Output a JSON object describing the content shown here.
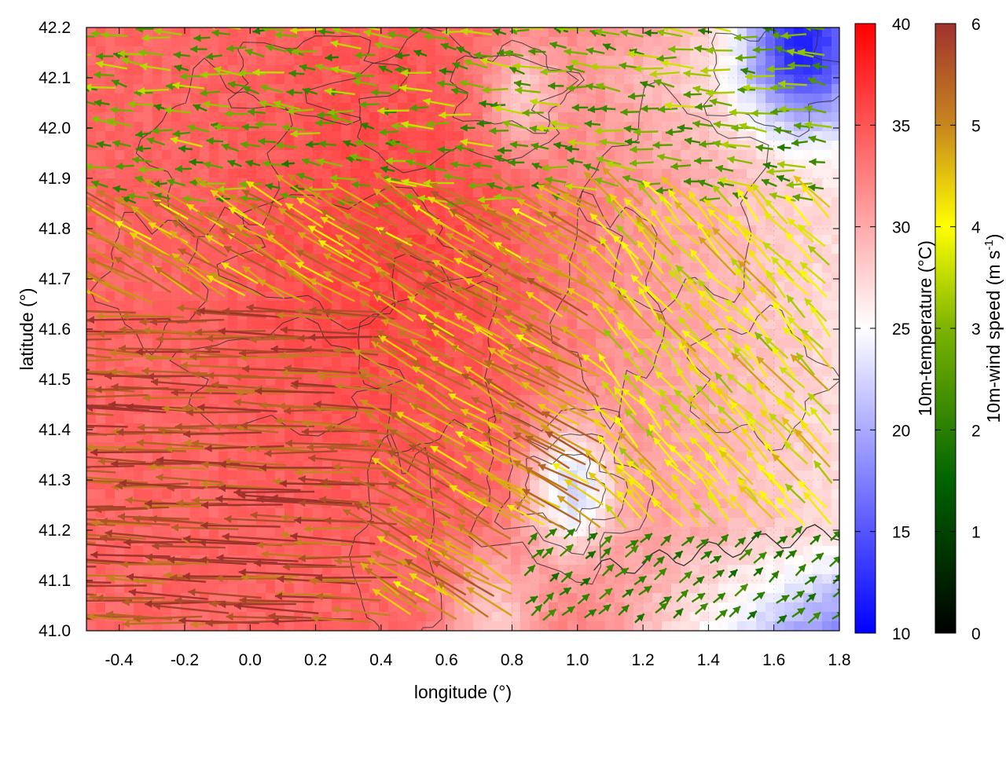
{
  "chart_data": {
    "type": "heatmap",
    "title": "",
    "xlabel": "longitude (°)",
    "ylabel": "latitude (°)",
    "xlim": [
      -0.5,
      1.8
    ],
    "ylim": [
      41.0,
      42.2
    ],
    "x_ticks": [
      "-0.4",
      "-0.2",
      "0.0",
      "0.2",
      "0.4",
      "0.6",
      "0.8",
      "1.0",
      "1.2",
      "1.4",
      "1.6",
      "1.8"
    ],
    "y_ticks": [
      "41.0",
      "41.1",
      "41.2",
      "41.3",
      "41.4",
      "41.5",
      "41.6",
      "41.7",
      "41.8",
      "41.9",
      "42.0",
      "42.1",
      "42.2"
    ],
    "grid": true,
    "layers": [
      {
        "name": "10m-temperature",
        "kind": "color-field",
        "units": "°C"
      },
      {
        "name": "terrain contours",
        "kind": "contour-lines",
        "color": "#303030"
      },
      {
        "name": "10m-wind",
        "kind": "vector-arrows",
        "units": "m s-1"
      }
    ],
    "temperature_colorbar": {
      "label": "10m-temperature (°C)",
      "range": [
        10,
        40
      ],
      "ticks": [
        "10",
        "15",
        "20",
        "25",
        "30",
        "35",
        "40"
      ],
      "colors": [
        "#0000ff",
        "#ffffff",
        "#ff0000"
      ]
    },
    "wind_colorbar": {
      "label_main": "10m-wind speed (m s",
      "label_sup": "-1",
      "label_end": ")",
      "range": [
        0,
        6
      ],
      "ticks": [
        "0",
        "1",
        "2",
        "3",
        "4",
        "5",
        "6"
      ],
      "colors": [
        "#000000",
        "#006400",
        "#7cb400",
        "#ffff00",
        "#c8861e",
        "#a0322d"
      ]
    },
    "temperature_regions": [
      {
        "area": "west and centre (lon -0.5 to 0.7)",
        "approx_temp_c": 34
      },
      {
        "area": "north-centre band lat 41.6-41.9",
        "approx_temp_c": 35
      },
      {
        "area": "east lowland lon 1.2-1.8, lat 41.4-41.7",
        "approx_temp_c": 27
      },
      {
        "area": "northeast corner lon 1.5-1.8, lat 42.1-42.2",
        "approx_temp_c": 17
      },
      {
        "area": "depression around lon 1.0, lat 41.3",
        "approx_temp_c": 22
      },
      {
        "area": "coastal strip southeast lon 1.2-1.8, lat 41.0-41.15",
        "approx_temp_c": 21
      }
    ],
    "wind_regions": [
      {
        "area": "southwest lon -0.5 to 0.4, lat 41.0-41.6",
        "direction": "from east (westward flow)",
        "speed_ms": 5.8
      },
      {
        "area": "centre lon 0.4-1.0, lat 41.3-41.8",
        "direction": "from southeast",
        "speed_ms": 5.2
      },
      {
        "area": "north lon -0.4 to 1.6, lat 41.8-42.2",
        "direction": "from east",
        "speed_ms": 2.5
      },
      {
        "area": "east lon 1.1-1.8, lat 41.3-41.7",
        "direction": "from southeast",
        "speed_ms": 4.0
      },
      {
        "area": "southeast coast lon 0.8-1.8, lat 41.0-41.2",
        "direction": "from southwest (onshore)",
        "speed_ms": 2.0
      }
    ]
  }
}
